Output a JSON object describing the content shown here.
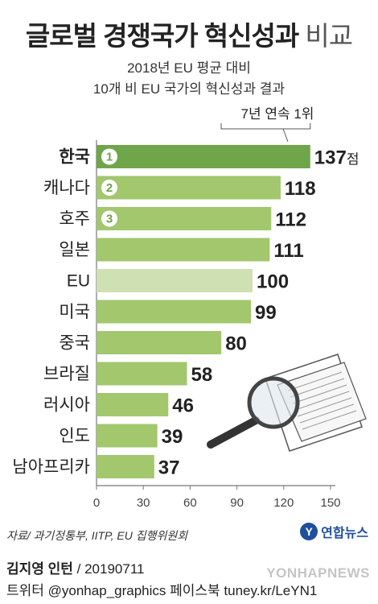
{
  "header": {
    "title_main": "글로벌 경쟁국가 혁신성과",
    "title_sub": "비교",
    "subtitle_line1": "2018년 EU 평균 대비",
    "subtitle_line2": "10개 비 EU 국가의 혁신성과 결과"
  },
  "chart_data": {
    "type": "bar",
    "orientation": "horizontal",
    "categories": [
      "한국",
      "캐나다",
      "호주",
      "일본",
      "EU",
      "미국",
      "중국",
      "브라질",
      "러시아",
      "인도",
      "남아프리카"
    ],
    "values": [
      137,
      118,
      112,
      111,
      100,
      99,
      80,
      58,
      46,
      39,
      37
    ],
    "value_unit_first": "점",
    "ranks": [
      "1",
      "2",
      "3"
    ],
    "xlim": [
      0,
      150
    ],
    "x_ticks": [
      0,
      30,
      60,
      90,
      120,
      150
    ],
    "annotation": "7년 연속 1위",
    "colors": {
      "top": "#6fa64a",
      "normal": "#a2c76d",
      "eu": "#cfe0b3",
      "axis": "#777777",
      "rank_circle": "#ffffff"
    }
  },
  "footer": {
    "source": "자료/ 과기정통부, IITP, EU 집행위원회",
    "logo_text": "연합뉴스",
    "author": "김지영 인턴",
    "date": " / 20190711",
    "social": "트위터 @yonhap_graphics  페이스북 tuney.kr/LeYN1",
    "watermark": "YONHAPNEWS"
  }
}
